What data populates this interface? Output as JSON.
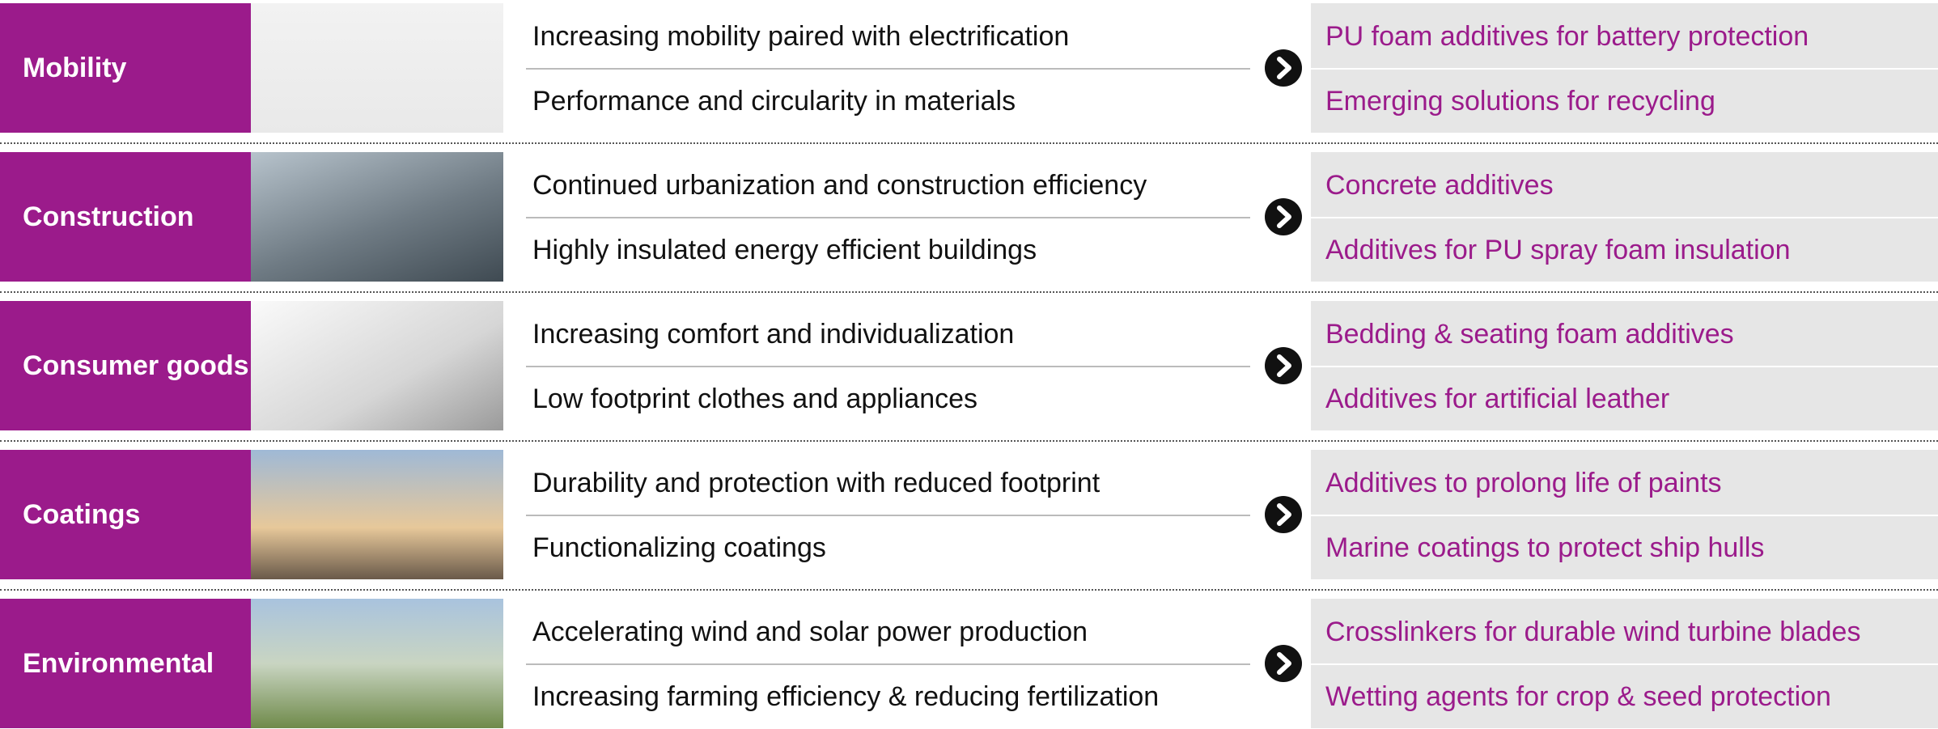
{
  "rows": [
    {
      "label": "Mobility",
      "trends": [
        "Increasing mobility paired with electrification",
        "Performance and circularity in materials"
      ],
      "solutions": [
        "PU foam additives for battery protection",
        "Emerging solutions for recycling"
      ]
    },
    {
      "label": "Construction",
      "trends": [
        "Continued urbanization and construction efficiency",
        "Highly insulated energy efficient buildings"
      ],
      "solutions": [
        "Concrete additives",
        "Additives for PU spray foam insulation"
      ]
    },
    {
      "label": "Consumer goods",
      "trends": [
        "Increasing comfort and individualization",
        "Low footprint clothes and appliances"
      ],
      "solutions": [
        "Bedding & seating foam additives",
        "Additives for artificial leather"
      ]
    },
    {
      "label": "Coatings",
      "trends": [
        "Durability and protection with reduced footprint",
        "Functionalizing coatings"
      ],
      "solutions": [
        "Additives to prolong life of paints",
        "Marine coatings to protect ship hulls"
      ]
    },
    {
      "label": "Environmental",
      "trends": [
        "Accelerating wind and solar power production",
        "Increasing farming efficiency & reducing fertilization"
      ],
      "solutions": [
        "Crosslinkers for durable wind turbine blades",
        "Wetting agents for crop & seed protection"
      ]
    }
  ]
}
